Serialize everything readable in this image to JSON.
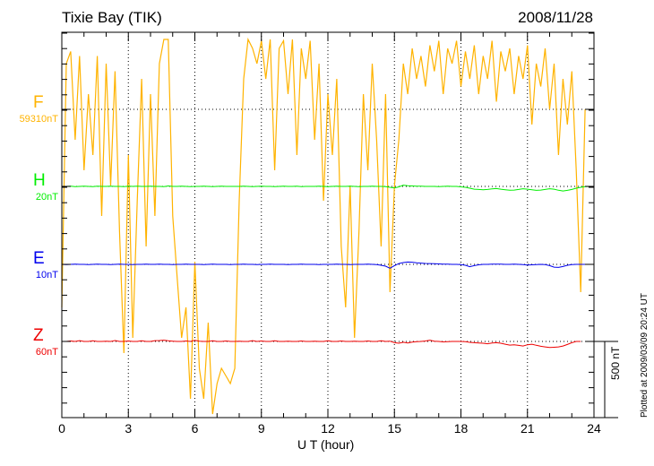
{
  "header": {
    "station": "Tixie Bay (TIK)",
    "date": "2008/11/28"
  },
  "footer": {
    "plotted": "Plotted at 2009/03/09 20:24 UT"
  },
  "scale_bar": {
    "label": "500 nT",
    "value_nT": 500
  },
  "chart_data": {
    "type": "line",
    "xlabel": "U T (hour)",
    "xlim": [
      0,
      24
    ],
    "xticks": [
      "0",
      "3",
      "6",
      "9",
      "12",
      "15",
      "18",
      "21",
      "24"
    ],
    "grid": "dotted at 3-hour intervals and component baselines",
    "sample_step_hours": 0.2,
    "series": [
      {
        "name": "F",
        "scale_label": "59310nT",
        "color": "#ffb300",
        "values": [
          -1300,
          300,
          380,
          -200,
          350,
          -400,
          100,
          -300,
          350,
          -700,
          300,
          -500,
          250,
          -800,
          -1600,
          -300,
          -1500,
          -600,
          200,
          -900,
          100,
          -700,
          300,
          470,
          480,
          -700,
          -1100,
          -1500,
          -1300,
          -1900,
          -1000,
          -1700,
          -1900,
          -1400,
          -2000,
          -1800,
          -1700,
          -1750,
          -1800,
          -1700,
          -600,
          200,
          480,
          400,
          300,
          450,
          200,
          480,
          -400,
          400,
          450,
          100,
          480,
          -300,
          400,
          200,
          450,
          -200,
          300,
          -600,
          100,
          -300,
          200,
          -900,
          -1300,
          -500,
          -1500,
          -800,
          100,
          -400,
          300,
          -200,
          -900,
          100,
          -1200,
          -500,
          -200,
          300,
          100,
          400,
          200,
          350,
          150,
          420,
          250,
          450,
          100,
          400,
          300,
          450,
          150,
          380,
          200,
          420,
          100,
          350,
          200,
          450,
          50,
          380,
          250,
          400,
          100,
          350,
          200,
          420,
          -100,
          300,
          150,
          400,
          0,
          300,
          -300,
          200,
          -100,
          250,
          -400,
          -1200,
          0
        ]
      },
      {
        "name": "H",
        "scale_label": "20nT",
        "color": "#00ee00",
        "values": [
          0,
          0,
          2,
          -1,
          0,
          1,
          0,
          -1,
          2,
          0,
          0,
          1,
          0,
          0,
          -1,
          1,
          0,
          2,
          0,
          0,
          1,
          0,
          0,
          -1,
          3,
          0,
          0,
          1,
          0,
          -1,
          0,
          0,
          2,
          0,
          -1,
          0,
          1,
          0,
          0,
          0,
          0,
          1,
          0,
          -2,
          0,
          1,
          0,
          0,
          -1,
          0,
          2,
          0,
          0,
          1,
          -1,
          0,
          0,
          0,
          1,
          0,
          -1,
          0,
          1,
          0,
          0,
          2,
          0,
          -1,
          0,
          0,
          1,
          0,
          0,
          -2,
          -6,
          -10,
          -3,
          8,
          5,
          3,
          2,
          1,
          0,
          0,
          0,
          -1,
          0,
          1,
          0,
          0,
          -3,
          -6,
          -12,
          -18,
          -20,
          -22,
          -20,
          -16,
          -14,
          -18,
          -22,
          -25,
          -24,
          -20,
          -15,
          -18,
          -22,
          -26,
          -24,
          -20,
          -15,
          -18,
          -25,
          -30,
          -26,
          -20,
          -12,
          -6,
          -2,
          0,
          0
        ]
      },
      {
        "name": "E",
        "scale_label": "10nT",
        "color": "#0000ee",
        "values": [
          0,
          -1,
          0,
          1,
          0,
          0,
          -1,
          0,
          1,
          0,
          0,
          -1,
          0,
          1,
          0,
          0,
          -1,
          0,
          0,
          1,
          0,
          0,
          1,
          0,
          0,
          -1,
          0,
          0,
          1,
          0,
          0,
          0,
          -1,
          0,
          1,
          0,
          0,
          0,
          -1,
          0,
          0,
          1,
          0,
          0,
          -1,
          0,
          0,
          1,
          0,
          0,
          0,
          -1,
          0,
          0,
          1,
          0,
          0,
          0,
          -1,
          0,
          0,
          0,
          1,
          0,
          0,
          -1,
          0,
          0,
          0,
          1,
          0,
          -2,
          -6,
          -12,
          -25,
          -8,
          5,
          12,
          15,
          14,
          10,
          8,
          6,
          5,
          4,
          3,
          2,
          1,
          0,
          0,
          -2,
          -6,
          -15,
          -8,
          -3,
          0,
          0,
          1,
          2,
          1,
          0,
          0,
          1,
          0,
          -2,
          -4,
          -3,
          -1,
          0,
          -2,
          -8,
          -18,
          -20,
          -14,
          -6,
          -2,
          0,
          0,
          0,
          0,
          0
        ]
      },
      {
        "name": "Z",
        "scale_label": "60nT",
        "color": "#ee0000",
        "values": [
          0,
          0,
          3,
          0,
          5,
          0,
          0,
          4,
          0,
          0,
          2,
          0,
          6,
          0,
          0,
          3,
          0,
          0,
          4,
          0,
          0,
          5,
          6,
          8,
          4,
          2,
          0,
          0,
          3,
          0,
          7,
          2,
          0,
          0,
          4,
          0,
          0,
          3,
          0,
          0,
          2,
          0,
          0,
          5,
          0,
          3,
          0,
          0,
          4,
          0,
          0,
          2,
          0,
          0,
          3,
          0,
          0,
          2,
          0,
          0,
          4,
          0,
          0,
          3,
          0,
          0,
          2,
          0,
          0,
          3,
          0,
          0,
          4,
          0,
          2,
          -8,
          -12,
          -5,
          -10,
          -4,
          -2,
          0,
          3,
          8,
          2,
          0,
          -3,
          -2,
          0,
          0,
          0,
          -2,
          -6,
          -8,
          -10,
          -12,
          -15,
          -10,
          -8,
          -12,
          -18,
          -24,
          -22,
          -26,
          -30,
          -22,
          -18,
          -25,
          -32,
          -36,
          -40,
          -38,
          -36,
          -30,
          -20,
          -8,
          0,
          0
        ]
      }
    ]
  }
}
